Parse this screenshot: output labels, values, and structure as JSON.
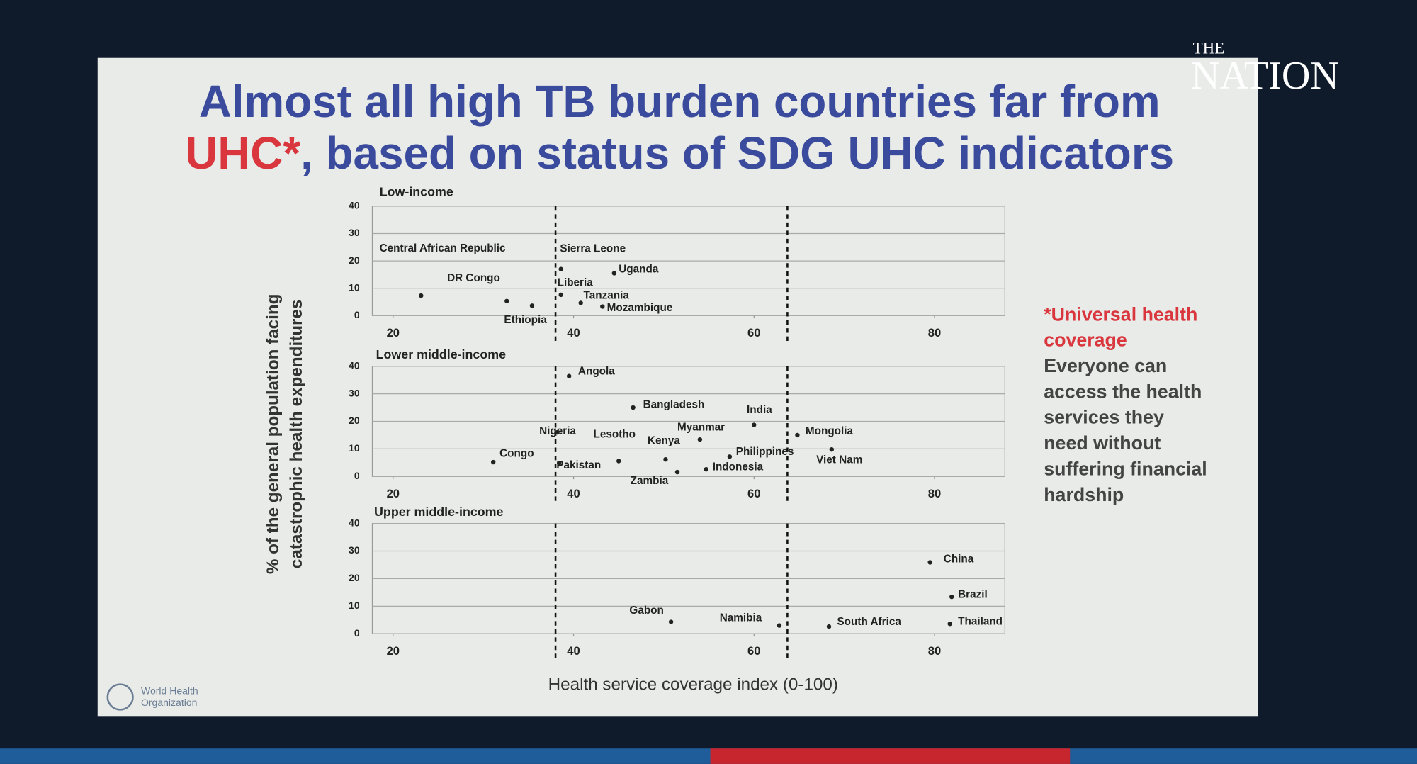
{
  "brand": {
    "line1": "THE",
    "line2": "NATION"
  },
  "title": {
    "line1": "Almost all high TB burden countries far from",
    "line2_highlight": "UHC*",
    "line2_rest": ", based on status of SDG UHC indicators"
  },
  "note": {
    "term_lines": [
      "*Universal health",
      "coverage"
    ],
    "definition_lines": [
      "Everyone can",
      "access the health",
      "services they",
      "need without",
      "suffering financial",
      "hardship"
    ]
  },
  "footer": {
    "organization_lines": [
      "World Health",
      "Organization"
    ]
  },
  "axes": {
    "xlabel": "Health service coverage index (0-100)",
    "ylabel_lines": [
      "% of the general population facing",
      "catastrophic health expenditures"
    ]
  },
  "chart_data": [
    {
      "type": "scatter",
      "title": "Low-income",
      "color": "#222222",
      "grid": true,
      "xlim": [
        17.7,
        87.8
      ],
      "xticks": [
        20,
        40,
        60,
        80
      ],
      "ylim": [
        0,
        40
      ],
      "yticks": [
        0,
        10,
        20,
        30,
        40
      ],
      "vlines": [
        38,
        63.7
      ],
      "labels": [
        "Central African Republic",
        "DR Congo",
        "Ethiopia",
        "Sierra Leone",
        "Liberia",
        "Uganda",
        "Tanzania",
        "Mozambique"
      ],
      "x": [
        23.1,
        32.6,
        35.4,
        38.6,
        38.6,
        44.5,
        40.8,
        43.2
      ],
      "values": [
        7.3,
        5.3,
        3.6,
        17,
        7.6,
        15.5,
        4.6,
        3.3
      ]
    },
    {
      "type": "scatter",
      "title": "Lower middle-income",
      "color": "#222222",
      "grid": true,
      "xlim": [
        17.7,
        87.8
      ],
      "xticks": [
        20,
        40,
        60,
        80
      ],
      "ylim": [
        0,
        40
      ],
      "yticks": [
        0,
        10,
        20,
        30,
        40
      ],
      "vlines": [
        38,
        63.7
      ],
      "labels": [
        "Angola",
        "Bangladesh",
        "India",
        "Nigeria",
        "Lesotho",
        "Myanmar",
        "Kenya",
        "Mongolia",
        "Philippines",
        "Viet Nam",
        "Congo",
        "Pakistan",
        "Zambia",
        "Indonesia"
      ],
      "x": [
        39.5,
        46.6,
        60,
        38.2,
        45,
        54,
        50.2,
        64.8,
        57.3,
        68.6,
        31.1,
        38.4,
        51.5,
        54.7
      ],
      "values": [
        36.4,
        25,
        18.7,
        16,
        5.6,
        13.4,
        6.2,
        15,
        7.2,
        9.8,
        5.2,
        4.9,
        1.6,
        2.6
      ]
    },
    {
      "type": "scatter",
      "title": "Upper middle-income",
      "color": "#222222",
      "grid": true,
      "xlim": [
        17.7,
        87.8
      ],
      "xticks": [
        20,
        40,
        60,
        80
      ],
      "ylim": [
        0,
        40
      ],
      "yticks": [
        0,
        10,
        20,
        30,
        40
      ],
      "vlines": [
        38,
        63.7
      ],
      "labels": [
        "China",
        "Brazil",
        "Thailand",
        "South Africa",
        "Namibia",
        "Gabon"
      ],
      "x": [
        79.5,
        81.9,
        81.7,
        68.3,
        62.8,
        50.8
      ],
      "values": [
        25.9,
        13.4,
        3.6,
        2.6,
        3,
        4.3
      ]
    }
  ]
}
